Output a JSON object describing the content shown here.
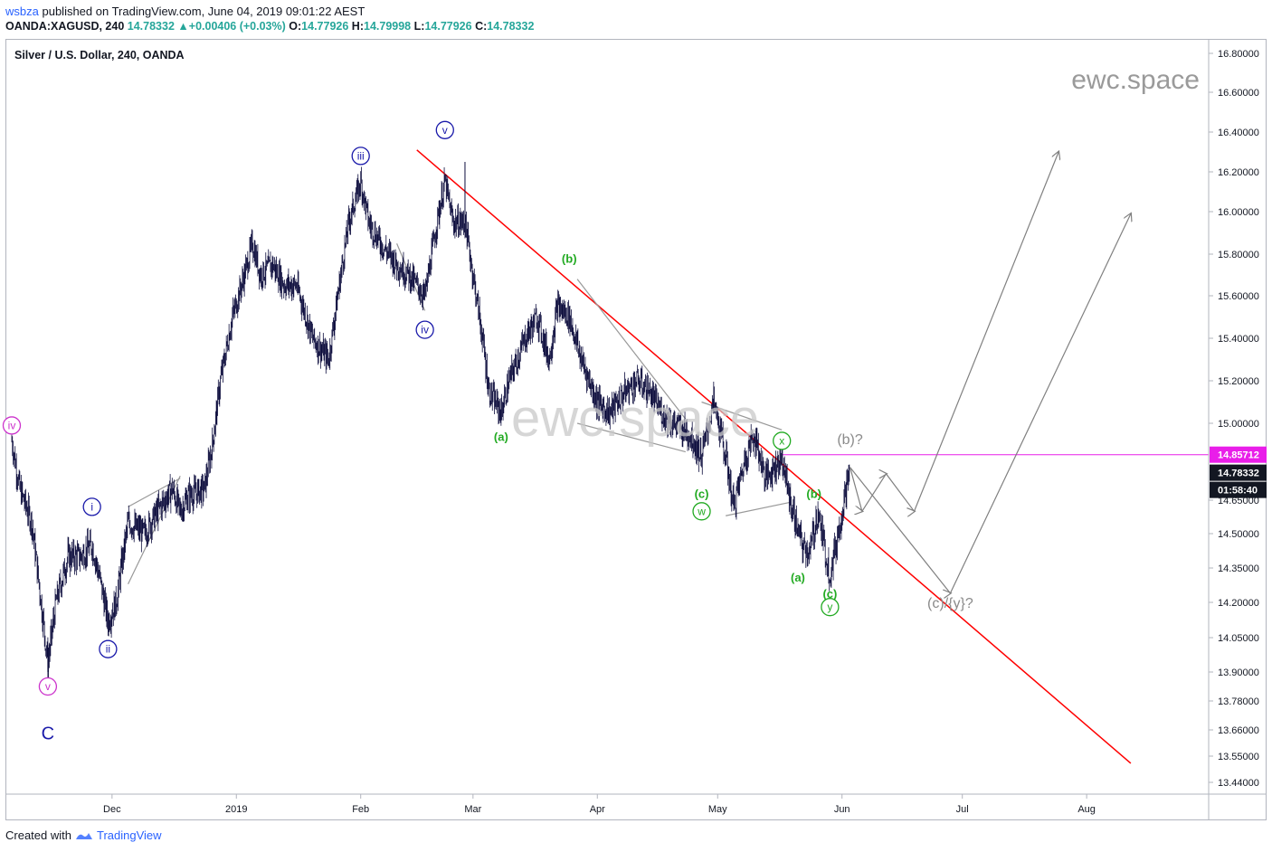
{
  "header": {
    "user": "wsbza",
    "published_text": "published on TradingView.com, June 04, 2019 09:01:22 AEST",
    "symbol": "OANDA:XAGUSD, 240",
    "last": "14.78332",
    "arrow": "▲",
    "change": "+0.00406 (+0.03%)",
    "o_label": "O:",
    "o_value": "14.77926",
    "h_label": "H:",
    "h_value": "14.79998",
    "l_label": "L:",
    "l_value": "14.77926",
    "c_label": "C:",
    "c_value": "14.78332"
  },
  "footer": {
    "created_with": "Created with",
    "tradingview": "TradingView"
  },
  "chart_data": {
    "type": "candlestick",
    "title": "Silver / U.S. Dollar, 240, OANDA",
    "watermark": "ewc.space",
    "center_watermark": "ewc.space",
    "x_ticks": [
      "Dec",
      "2019",
      "Feb",
      "Mar",
      "Apr",
      "May",
      "Jun",
      "Jul",
      "Aug"
    ],
    "y_ticks": [
      "16.80000",
      "16.60000",
      "16.40000",
      "16.20000",
      "16.00000",
      "15.80000",
      "15.60000",
      "15.40000",
      "15.20000",
      "15.00000",
      "14.65000",
      "14.50000",
      "14.35000",
      "14.20000",
      "14.05000",
      "13.90000",
      "13.78000",
      "13.66000",
      "13.55000",
      "13.44000"
    ],
    "price_labels": [
      {
        "value": "14.85712",
        "color": "#e91ee9"
      },
      {
        "value": "14.78332",
        "color": "#131722"
      },
      {
        "value": "01:58:40",
        "color": "#131722"
      }
    ],
    "horizontal_line": {
      "value": 14.85712,
      "color": "#e91ee9"
    },
    "price_path": [
      [
        "2018-11-06",
        14.92
      ],
      [
        "2018-11-08",
        14.7
      ],
      [
        "2018-11-11",
        14.55
      ],
      [
        "2018-11-13",
        14.25
      ],
      [
        "2018-11-15",
        13.94
      ],
      [
        "2018-11-17",
        14.2
      ],
      [
        "2018-11-20",
        14.4
      ],
      [
        "2018-11-23",
        14.4
      ],
      [
        "2018-11-26",
        14.45
      ],
      [
        "2018-11-28",
        14.3
      ],
      [
        "2018-11-30",
        14.12
      ],
      [
        "2018-12-02",
        14.2
      ],
      [
        "2018-12-05",
        14.55
      ],
      [
        "2018-12-09",
        14.5
      ],
      [
        "2018-12-13",
        14.62
      ],
      [
        "2018-12-16",
        14.7
      ],
      [
        "2018-12-18",
        14.6
      ],
      [
        "2018-12-20",
        14.67
      ],
      [
        "2018-12-24",
        14.7
      ],
      [
        "2018-12-26",
        14.9
      ],
      [
        "2018-12-28",
        15.2
      ],
      [
        "2018-12-31",
        15.5
      ],
      [
        "2019-01-03",
        15.7
      ],
      [
        "2019-01-05",
        15.85
      ],
      [
        "2019-01-07",
        15.7
      ],
      [
        "2019-01-10",
        15.75
      ],
      [
        "2019-01-13",
        15.65
      ],
      [
        "2019-01-16",
        15.65
      ],
      [
        "2019-01-20",
        15.4
      ],
      [
        "2019-01-24",
        15.3
      ],
      [
        "2019-01-27",
        15.7
      ],
      [
        "2019-01-29",
        15.95
      ],
      [
        "2019-02-01",
        16.15
      ],
      [
        "2019-02-03",
        15.95
      ],
      [
        "2019-02-06",
        15.85
      ],
      [
        "2019-02-10",
        15.75
      ],
      [
        "2019-02-13",
        15.7
      ],
      [
        "2019-02-17",
        15.6
      ],
      [
        "2019-02-20",
        15.95
      ],
      [
        "2019-02-22",
        16.15
      ],
      [
        "2019-02-24",
        15.95
      ],
      [
        "2019-02-27",
        15.95
      ],
      [
        "2019-03-01",
        15.7
      ],
      [
        "2019-03-03",
        15.45
      ],
      [
        "2019-03-05",
        15.15
      ],
      [
        "2019-03-08",
        15.05
      ],
      [
        "2019-03-10",
        15.2
      ],
      [
        "2019-03-14",
        15.4
      ],
      [
        "2019-03-17",
        15.5
      ],
      [
        "2019-03-20",
        15.3
      ],
      [
        "2019-03-22",
        15.55
      ],
      [
        "2019-03-25",
        15.5
      ],
      [
        "2019-03-28",
        15.3
      ],
      [
        "2019-04-01",
        15.1
      ],
      [
        "2019-04-04",
        15.05
      ],
      [
        "2019-04-08",
        15.15
      ],
      [
        "2019-04-11",
        15.2
      ],
      [
        "2019-04-14",
        15.15
      ],
      [
        "2019-04-17",
        15.05
      ],
      [
        "2019-04-20",
        15.0
      ],
      [
        "2019-04-24",
        14.95
      ],
      [
        "2019-04-27",
        14.85
      ],
      [
        "2019-04-30",
        15.1
      ],
      [
        "2019-05-03",
        14.85
      ],
      [
        "2019-05-05",
        14.62
      ],
      [
        "2019-05-08",
        14.85
      ],
      [
        "2019-05-10",
        14.95
      ],
      [
        "2019-05-13",
        14.75
      ],
      [
        "2019-05-15",
        14.8
      ],
      [
        "2019-05-17",
        14.85
      ],
      [
        "2019-05-19",
        14.65
      ],
      [
        "2019-05-22",
        14.45
      ],
      [
        "2019-05-24",
        14.42
      ],
      [
        "2019-05-26",
        14.6
      ],
      [
        "2019-05-28",
        14.4
      ],
      [
        "2019-05-29",
        14.32
      ],
      [
        "2019-05-31",
        14.5
      ],
      [
        "2019-06-02",
        14.7
      ],
      [
        "2019-06-03",
        14.8
      ]
    ],
    "overlay_lines": [
      {
        "name": "red-trendline",
        "color": "#ff0000",
        "from": [
          "2019-02-15",
          16.31
        ],
        "to": [
          "2019-08-12",
          13.52
        ]
      },
      {
        "name": "gray-lower-wedge",
        "color": "#999",
        "from": [
          "2018-12-05",
          14.28
        ],
        "to": [
          "2018-12-18",
          14.76
        ]
      },
      {
        "name": "gray-upper-wedge",
        "color": "#999",
        "from": [
          "2018-12-05",
          14.62
        ],
        "to": [
          "2018-12-18",
          14.75
        ]
      },
      {
        "name": "gray-iv-line",
        "color": "#999",
        "from": [
          "2019-02-10",
          15.85
        ],
        "to": [
          "2019-02-17",
          15.53
        ]
      },
      {
        "name": "gray-upper-triangle",
        "color": "#999",
        "from": [
          "2019-03-27",
          15.68
        ],
        "to": [
          "2019-04-23",
          15.02
        ]
      },
      {
        "name": "gray-lower-triangle",
        "color": "#999",
        "from": [
          "2019-03-27",
          15.0
        ],
        "to": [
          "2019-04-23",
          14.87
        ]
      },
      {
        "name": "gray-w-x-upper",
        "color": "#999",
        "from": [
          "2019-04-27",
          15.1
        ],
        "to": [
          "2019-05-17",
          14.97
        ]
      },
      {
        "name": "gray-w-x-lower",
        "color": "#999",
        "from": [
          "2019-05-03",
          14.58
        ],
        "to": [
          "2019-05-19",
          14.64
        ]
      }
    ],
    "projections": [
      {
        "name": "projection-path-a",
        "color": "#808080",
        "points": [
          [
            "2019-06-03",
            14.8
          ],
          [
            "2019-06-06",
            14.6
          ],
          [
            "2019-06-12",
            14.77
          ],
          [
            "2019-06-19",
            14.6
          ],
          [
            "2019-07-25",
            16.3
          ]
        ]
      },
      {
        "name": "projection-path-b",
        "color": "#808080",
        "points": [
          [
            "2019-06-03",
            14.8
          ],
          [
            "2019-06-28",
            14.24
          ],
          [
            "2019-08-12",
            15.99
          ]
        ]
      }
    ],
    "annotations": [
      {
        "text": "iv",
        "style": "circle",
        "color": "#cc33cc",
        "at": [
          "2018-11-06",
          14.99
        ]
      },
      {
        "text": "v",
        "style": "circle",
        "color": "#cc33cc",
        "at": [
          "2018-11-15",
          13.84
        ]
      },
      {
        "text": "C",
        "style": "plain",
        "color": "#1a1aaa",
        "at": [
          "2018-11-15",
          13.65
        ]
      },
      {
        "text": "i",
        "style": "circle",
        "color": "#1a1aaa",
        "at": [
          "2018-11-26",
          14.62
        ]
      },
      {
        "text": "ii",
        "style": "circle",
        "color": "#1a1aaa",
        "at": [
          "2018-11-30",
          14.0
        ]
      },
      {
        "text": "iii",
        "style": "circle",
        "color": "#1a1aaa",
        "at": [
          "2019-02-01",
          16.28
        ]
      },
      {
        "text": "iv",
        "style": "circle",
        "color": "#1a1aaa",
        "at": [
          "2019-02-17",
          15.44
        ]
      },
      {
        "text": "v",
        "style": "circle",
        "color": "#1a1aaa",
        "at": [
          "2019-02-22",
          16.41
        ]
      },
      {
        "text": "(a)",
        "style": "bold",
        "color": "#22aa22",
        "at": [
          "2019-03-08",
          14.94
        ]
      },
      {
        "text": "(b)",
        "style": "bold",
        "color": "#22aa22",
        "at": [
          "2019-03-25",
          15.78
        ]
      },
      {
        "text": "(c)",
        "style": "bold",
        "color": "#22aa22",
        "at": [
          "2019-04-27",
          14.68
        ]
      },
      {
        "text": "w",
        "style": "circle",
        "color": "#22aa22",
        "at": [
          "2019-04-27",
          14.6
        ]
      },
      {
        "text": "x",
        "style": "circle",
        "color": "#22aa22",
        "at": [
          "2019-05-17",
          14.92
        ]
      },
      {
        "text": "(b)",
        "style": "bold",
        "color": "#22aa22",
        "at": [
          "2019-05-25",
          14.68
        ]
      },
      {
        "text": "(a)",
        "style": "bold",
        "color": "#22aa22",
        "at": [
          "2019-05-21",
          14.31
        ]
      },
      {
        "text": "(c)",
        "style": "bold",
        "color": "#22aa22",
        "at": [
          "2019-05-29",
          14.24
        ]
      },
      {
        "text": "y",
        "style": "circle",
        "color": "#22aa22",
        "at": [
          "2019-05-29",
          14.18
        ]
      },
      {
        "text": "(b)?",
        "style": "plain-gray",
        "color": "#8a8a8a",
        "at": [
          "2019-06-03",
          14.93
        ]
      },
      {
        "text": "(c)/{y}?",
        "style": "plain-gray",
        "color": "#8a8a8a",
        "at": [
          "2019-06-28",
          14.2
        ]
      }
    ]
  }
}
